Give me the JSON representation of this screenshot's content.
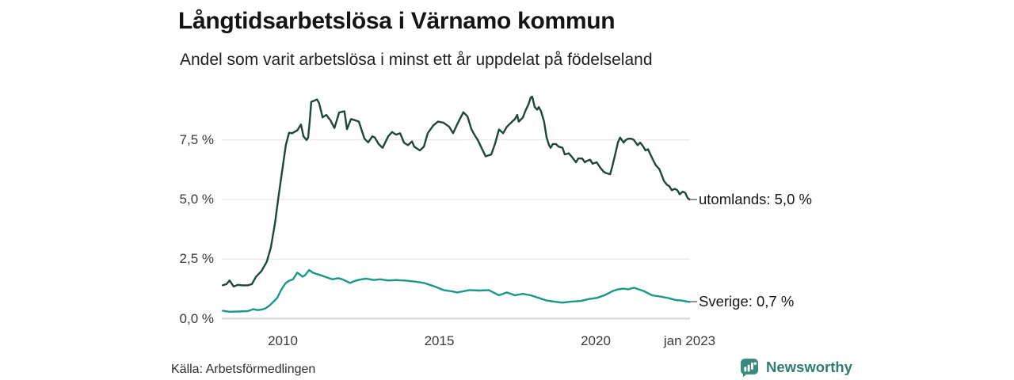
{
  "title": "Långtidsarbetslösa i Värnamo kommun",
  "subtitle": "Andel som varit arbetslösa i minst ett år uppdelat på födelseland",
  "source": "Källa: Arbetsförmedlingen",
  "branding": {
    "name": "Newsworthy",
    "icon": "bar-chart-speech-bubble-icon",
    "icon_bg_color": "#3a8b7d",
    "text_color": "#2e7d70"
  },
  "colors": {
    "utomlands_line": "#1d473c",
    "sverige_line": "#17988a",
    "grid": "#e4e4e4",
    "axis_text": "#3a3a3a",
    "title_text": "#141414"
  },
  "chart_data": {
    "type": "line",
    "title": "Långtidsarbetslösa i Värnamo kommun",
    "subtitle": "Andel som varit arbetslösa i minst ett år uppdelat på födelseland",
    "x_unit": "year (decimal)",
    "y_unit": "percent long-term unemployed",
    "grid": "horizontal-only",
    "legend_position": "end-of-line labels",
    "x_axis": {
      "range": [
        2008.05,
        2023.1
      ],
      "ticks": [
        {
          "label": "2010",
          "t": 2010
        },
        {
          "label": "2015",
          "t": 2015
        },
        {
          "label": "2020",
          "t": 2020
        },
        {
          "label": "jan 2023",
          "t": 2023
        }
      ]
    },
    "y_axis": {
      "range": [
        0,
        9.6
      ],
      "ticks": [
        {
          "label": "0,0 %",
          "v": 0
        },
        {
          "label": "2,5 %",
          "v": 2.5
        },
        {
          "label": "5,0 %",
          "v": 5
        },
        {
          "label": "7,5 %",
          "v": 7.5
        }
      ]
    },
    "series": [
      {
        "name": "utomlands",
        "end_label": "utomlands: 5,0 %",
        "end_value": 5.0,
        "color": "#1d473c",
        "points": [
          [
            2008.08,
            1.4
          ],
          [
            2008.2,
            1.45
          ],
          [
            2008.3,
            1.6
          ],
          [
            2008.43,
            1.35
          ],
          [
            2008.56,
            1.42
          ],
          [
            2008.71,
            1.4
          ],
          [
            2008.89,
            1.4
          ],
          [
            2009.01,
            1.45
          ],
          [
            2009.14,
            1.75
          ],
          [
            2009.32,
            2.0
          ],
          [
            2009.49,
            2.4
          ],
          [
            2009.62,
            3.0
          ],
          [
            2009.75,
            4.0
          ],
          [
            2009.87,
            5.2
          ],
          [
            2010.0,
            6.4
          ],
          [
            2010.1,
            7.3
          ],
          [
            2010.2,
            7.8
          ],
          [
            2010.3,
            7.78
          ],
          [
            2010.46,
            7.9
          ],
          [
            2010.58,
            8.15
          ],
          [
            2010.66,
            7.65
          ],
          [
            2010.76,
            7.5
          ],
          [
            2010.81,
            7.6
          ],
          [
            2010.86,
            8.3
          ],
          [
            2010.91,
            9.1
          ],
          [
            2011.01,
            9.15
          ],
          [
            2011.09,
            9.2
          ],
          [
            2011.16,
            9.05
          ],
          [
            2011.27,
            8.45
          ],
          [
            2011.39,
            8.55
          ],
          [
            2011.52,
            8.33
          ],
          [
            2011.65,
            8.0
          ],
          [
            2011.8,
            8.65
          ],
          [
            2011.97,
            8.7
          ],
          [
            2012.05,
            7.95
          ],
          [
            2012.18,
            8.38
          ],
          [
            2012.3,
            8.33
          ],
          [
            2012.43,
            8.27
          ],
          [
            2012.61,
            7.55
          ],
          [
            2012.73,
            7.4
          ],
          [
            2012.86,
            7.65
          ],
          [
            2012.94,
            7.6
          ],
          [
            2013.06,
            7.33
          ],
          [
            2013.19,
            7.17
          ],
          [
            2013.37,
            7.65
          ],
          [
            2013.49,
            7.83
          ],
          [
            2013.62,
            7.72
          ],
          [
            2013.75,
            7.78
          ],
          [
            2013.87,
            7.39
          ],
          [
            2014.0,
            7.28
          ],
          [
            2014.13,
            7.44
          ],
          [
            2014.2,
            7.22
          ],
          [
            2014.38,
            7.06
          ],
          [
            2014.51,
            7.22
          ],
          [
            2014.63,
            7.78
          ],
          [
            2014.81,
            8.11
          ],
          [
            2014.96,
            8.27
          ],
          [
            2015.14,
            8.22
          ],
          [
            2015.32,
            8.05
          ],
          [
            2015.44,
            7.78
          ],
          [
            2015.59,
            8.2
          ],
          [
            2015.77,
            8.66
          ],
          [
            2015.9,
            8.49
          ],
          [
            2016.03,
            7.94
          ],
          [
            2016.15,
            7.66
          ],
          [
            2016.23,
            7.5
          ],
          [
            2016.35,
            7.17
          ],
          [
            2016.48,
            6.81
          ],
          [
            2016.66,
            6.89
          ],
          [
            2016.78,
            7.33
          ],
          [
            2016.91,
            7.94
          ],
          [
            2017.04,
            7.78
          ],
          [
            2017.16,
            8.05
          ],
          [
            2017.29,
            8.22
          ],
          [
            2017.42,
            8.38
          ],
          [
            2017.49,
            8.55
          ],
          [
            2017.54,
            8.27
          ],
          [
            2017.67,
            8.44
          ],
          [
            2017.75,
            8.71
          ],
          [
            2017.85,
            8.99
          ],
          [
            2017.92,
            9.27
          ],
          [
            2017.97,
            9.32
          ],
          [
            2018.05,
            8.88
          ],
          [
            2018.13,
            8.77
          ],
          [
            2018.18,
            8.88
          ],
          [
            2018.25,
            8.71
          ],
          [
            2018.35,
            8.27
          ],
          [
            2018.43,
            7.6
          ],
          [
            2018.51,
            7.28
          ],
          [
            2018.56,
            7.17
          ],
          [
            2018.63,
            7.33
          ],
          [
            2018.73,
            7.33
          ],
          [
            2018.81,
            7.22
          ],
          [
            2018.94,
            7.17
          ],
          [
            2019.01,
            6.89
          ],
          [
            2019.14,
            6.94
          ],
          [
            2019.24,
            6.78
          ],
          [
            2019.37,
            6.56
          ],
          [
            2019.44,
            6.72
          ],
          [
            2019.57,
            6.72
          ],
          [
            2019.65,
            6.56
          ],
          [
            2019.7,
            6.61
          ],
          [
            2019.82,
            6.67
          ],
          [
            2019.9,
            6.5
          ],
          [
            2020.03,
            6.56
          ],
          [
            2020.15,
            6.33
          ],
          [
            2020.25,
            6.17
          ],
          [
            2020.33,
            6.11
          ],
          [
            2020.46,
            6.06
          ],
          [
            2020.53,
            6.39
          ],
          [
            2020.63,
            6.94
          ],
          [
            2020.71,
            7.39
          ],
          [
            2020.78,
            7.6
          ],
          [
            2020.89,
            7.39
          ],
          [
            2020.96,
            7.5
          ],
          [
            2021.04,
            7.55
          ],
          [
            2021.14,
            7.55
          ],
          [
            2021.22,
            7.5
          ],
          [
            2021.34,
            7.28
          ],
          [
            2021.42,
            7.39
          ],
          [
            2021.52,
            7.22
          ],
          [
            2021.59,
            7.06
          ],
          [
            2021.67,
            7.11
          ],
          [
            2021.77,
            6.83
          ],
          [
            2021.85,
            6.61
          ],
          [
            2021.92,
            6.44
          ],
          [
            2022.03,
            6.28
          ],
          [
            2022.1,
            6.06
          ],
          [
            2022.18,
            5.78
          ],
          [
            2022.28,
            5.61
          ],
          [
            2022.35,
            5.56
          ],
          [
            2022.43,
            5.39
          ],
          [
            2022.53,
            5.45
          ],
          [
            2022.61,
            5.39
          ],
          [
            2022.68,
            5.22
          ],
          [
            2022.78,
            5.33
          ],
          [
            2022.86,
            5.28
          ],
          [
            2022.94,
            5.06
          ],
          [
            2023.0,
            5.0
          ]
        ]
      },
      {
        "name": "Sverige",
        "end_label": "Sverige: 0,7 %",
        "end_value": 0.7,
        "color": "#17988a",
        "points": [
          [
            2008.08,
            0.33
          ],
          [
            2008.3,
            0.29
          ],
          [
            2008.56,
            0.3
          ],
          [
            2008.89,
            0.32
          ],
          [
            2009.06,
            0.4
          ],
          [
            2009.19,
            0.36
          ],
          [
            2009.32,
            0.38
          ],
          [
            2009.44,
            0.43
          ],
          [
            2009.57,
            0.54
          ],
          [
            2009.7,
            0.71
          ],
          [
            2009.82,
            0.87
          ],
          [
            2009.95,
            1.21
          ],
          [
            2010.08,
            1.48
          ],
          [
            2010.2,
            1.59
          ],
          [
            2010.33,
            1.65
          ],
          [
            2010.46,
            1.93
          ],
          [
            2010.53,
            1.87
          ],
          [
            2010.63,
            1.76
          ],
          [
            2010.71,
            1.82
          ],
          [
            2010.84,
            2.04
          ],
          [
            2010.96,
            1.93
          ],
          [
            2011.09,
            1.87
          ],
          [
            2011.22,
            1.82
          ],
          [
            2011.34,
            1.76
          ],
          [
            2011.47,
            1.7
          ],
          [
            2011.59,
            1.65
          ],
          [
            2011.77,
            1.7
          ],
          [
            2011.9,
            1.65
          ],
          [
            2012.03,
            1.57
          ],
          [
            2012.15,
            1.5
          ],
          [
            2012.28,
            1.57
          ],
          [
            2012.41,
            1.62
          ],
          [
            2012.53,
            1.65
          ],
          [
            2012.66,
            1.68
          ],
          [
            2012.78,
            1.65
          ],
          [
            2012.91,
            1.62
          ],
          [
            2013.11,
            1.65
          ],
          [
            2013.37,
            1.6
          ],
          [
            2013.62,
            1.62
          ],
          [
            2013.95,
            1.59
          ],
          [
            2014.25,
            1.55
          ],
          [
            2014.51,
            1.5
          ],
          [
            2014.81,
            1.37
          ],
          [
            2015.14,
            1.2
          ],
          [
            2015.39,
            1.15
          ],
          [
            2015.57,
            1.1
          ],
          [
            2015.77,
            1.15
          ],
          [
            2015.97,
            1.2
          ],
          [
            2016.28,
            1.18
          ],
          [
            2016.58,
            1.2
          ],
          [
            2016.73,
            1.1
          ],
          [
            2016.91,
            0.98
          ],
          [
            2017.16,
            1.1
          ],
          [
            2017.42,
            0.98
          ],
          [
            2017.67,
            1.04
          ],
          [
            2017.92,
            0.98
          ],
          [
            2018.18,
            0.87
          ],
          [
            2018.43,
            0.76
          ],
          [
            2018.68,
            0.71
          ],
          [
            2018.94,
            0.67
          ],
          [
            2019.19,
            0.71
          ],
          [
            2019.52,
            0.74
          ],
          [
            2019.77,
            0.82
          ],
          [
            2020.03,
            0.87
          ],
          [
            2020.28,
            0.98
          ],
          [
            2020.53,
            1.15
          ],
          [
            2020.71,
            1.23
          ],
          [
            2020.89,
            1.26
          ],
          [
            2021.04,
            1.23
          ],
          [
            2021.22,
            1.3
          ],
          [
            2021.55,
            1.15
          ],
          [
            2021.8,
            0.98
          ],
          [
            2022.05,
            0.93
          ],
          [
            2022.3,
            0.87
          ],
          [
            2022.56,
            0.78
          ],
          [
            2022.73,
            0.76
          ],
          [
            2023.0,
            0.7
          ]
        ]
      }
    ]
  }
}
